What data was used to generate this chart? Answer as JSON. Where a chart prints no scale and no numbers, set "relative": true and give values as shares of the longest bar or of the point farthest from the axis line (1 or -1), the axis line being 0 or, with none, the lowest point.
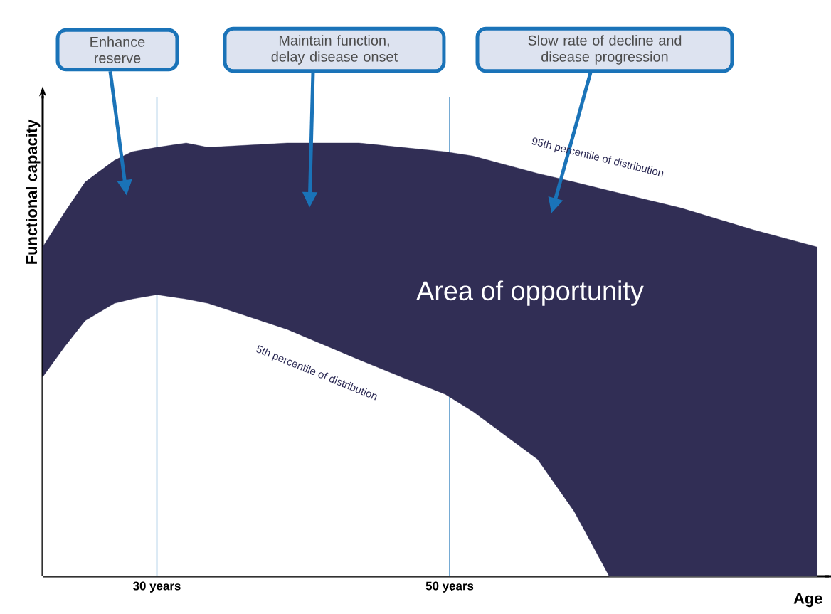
{
  "chart_data": {
    "type": "area",
    "relative": true,
    "xlabel": "Age",
    "ylabel": "Functional capacity",
    "x": [
      22.2,
      23.7,
      25.1,
      27.1,
      28.3,
      30.0,
      32.0,
      33.5,
      38.9,
      43.8,
      46.7,
      49.7,
      51.6,
      56.0,
      58.5,
      60.9,
      65.8,
      70.7,
      75.1
    ],
    "series": [
      {
        "color": "#ffffff",
        "values": [
          0.46,
          0.53,
          0.59,
          0.63,
          0.64,
          0.65,
          0.64,
          0.63,
          0.57,
          0.5,
          0.46,
          0.42,
          0.38,
          0.27,
          0.15,
          0.0,
          0.0,
          0.0,
          0.0
        ]
      },
      {
        "color": "#312e55",
        "values": [
          0.3,
          0.31,
          0.32,
          0.33,
          0.34,
          0.34,
          0.36,
          0.36,
          0.43,
          0.5,
          0.53,
          0.56,
          0.59,
          0.66,
          0.76,
          0.89,
          0.85,
          0.8,
          0.76
        ]
      }
    ],
    "xlim": [
      22.2,
      75.9
    ],
    "xticks": [
      {
        "value": 30,
        "label": "30 years"
      },
      {
        "value": 50,
        "label": "50 years"
      }
    ],
    "ref_lines": [
      {
        "axis": "x",
        "value": 30,
        "color": "#1a73b8"
      },
      {
        "axis": "x",
        "value": 50,
        "color": "#1a73b8"
      }
    ],
    "stacked": true,
    "annotations": [
      "Enhance reserve",
      "Maintain function, delay disease onset",
      "Slow rate of decline and disease progression",
      "95th percentile of distribution",
      "5th percentile of distribution",
      "Area of opportunity"
    ]
  }
}
